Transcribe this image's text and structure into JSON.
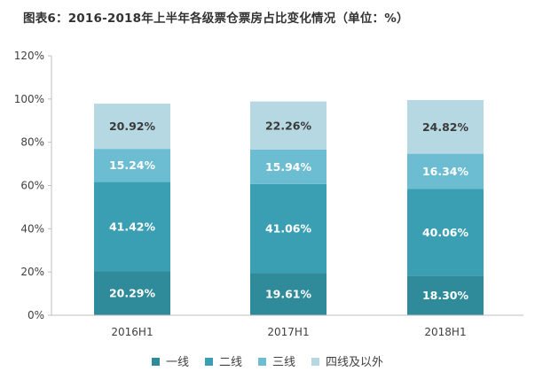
{
  "title": "图表6：2016-2018年上半年各级票仓票房占比变化情况（单位：%）",
  "chart_data": {
    "type": "bar",
    "stacked": true,
    "title": "图表6：2016-2018年上半年各级票仓票房占比变化情况（单位：%）",
    "categories": [
      "2016H1",
      "2017H1",
      "2018H1"
    ],
    "series": [
      {
        "name": "一线",
        "values": [
          20.29,
          19.61,
          18.3
        ],
        "labels": [
          "20.29%",
          "19.61%",
          "18.30%"
        ],
        "color": "#2f8a99"
      },
      {
        "name": "二线",
        "values": [
          41.42,
          41.06,
          40.06
        ],
        "labels": [
          "41.42%",
          "41.06%",
          "40.06%"
        ],
        "color": "#3b9fb4"
      },
      {
        "name": "三线",
        "values": [
          15.24,
          15.94,
          16.34
        ],
        "labels": [
          "15.24%",
          "15.94%",
          "16.34%"
        ],
        "color": "#6cbcd2"
      },
      {
        "name": "四线及以外",
        "values": [
          20.92,
          22.26,
          24.82
        ],
        "labels": [
          "20.92%",
          "22.26%",
          "24.82%"
        ],
        "color": "#b6d8e3"
      }
    ],
    "ylim": [
      0,
      120
    ],
    "yticks": [
      0,
      20,
      40,
      60,
      80,
      100,
      120
    ],
    "ytick_labels": [
      "0%",
      "20%",
      "40%",
      "60%",
      "80%",
      "100%",
      "120%"
    ],
    "xlabel": "",
    "ylabel": "",
    "grid": false,
    "legend_position": "bottom"
  }
}
